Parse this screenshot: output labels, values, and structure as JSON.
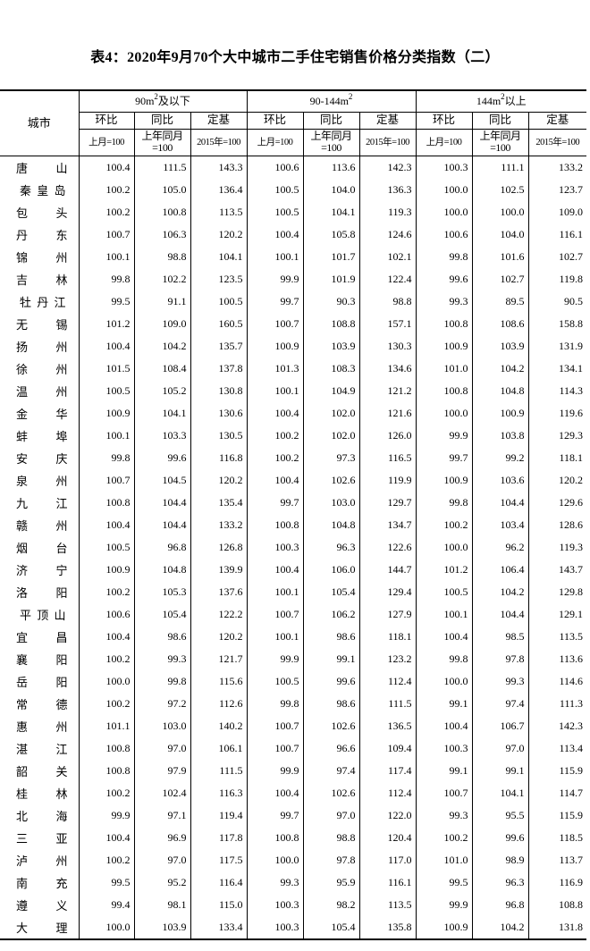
{
  "title": "表4：2020年9月70个大中城市二手住宅销售价格分类指数（二）",
  "header": {
    "city": "城市",
    "groups": [
      {
        "pre": "90m",
        "sup": "2",
        "post": "及以下"
      },
      {
        "pre": "90-144m",
        "sup": "2",
        "post": ""
      },
      {
        "pre": "144m",
        "sup": "2",
        "post": "以上"
      }
    ],
    "sub": [
      "环比",
      "同比",
      "定基"
    ],
    "base": [
      "上月=100",
      "上年同月=100",
      "2015年=100"
    ]
  },
  "rows": [
    [
      "唐山",
      100.4,
      111.5,
      143.3,
      100.6,
      113.6,
      142.3,
      100.3,
      111.1,
      133.2
    ],
    [
      "秦皇岛",
      100.2,
      105.0,
      136.4,
      100.5,
      104.0,
      136.3,
      100.0,
      102.5,
      123.7
    ],
    [
      "包头",
      100.2,
      100.8,
      113.5,
      100.5,
      104.1,
      119.3,
      100.0,
      100.0,
      109.0
    ],
    [
      "丹东",
      100.7,
      106.3,
      120.2,
      100.4,
      105.8,
      124.6,
      100.6,
      104.0,
      116.1
    ],
    [
      "锦州",
      100.1,
      98.8,
      104.1,
      100.1,
      101.7,
      102.1,
      99.8,
      101.6,
      102.7
    ],
    [
      "吉林",
      99.8,
      102.2,
      123.5,
      99.9,
      101.9,
      122.4,
      99.6,
      102.7,
      119.8
    ],
    [
      "牡丹江",
      99.5,
      91.1,
      100.5,
      99.7,
      90.3,
      98.8,
      99.3,
      89.5,
      90.5
    ],
    [
      "无锡",
      101.2,
      109.0,
      160.5,
      100.7,
      108.8,
      157.1,
      100.8,
      108.6,
      158.8
    ],
    [
      "扬州",
      100.4,
      104.2,
      135.7,
      100.9,
      103.9,
      130.3,
      100.9,
      103.9,
      131.9
    ],
    [
      "徐州",
      101.5,
      108.4,
      137.8,
      101.3,
      108.3,
      134.6,
      101.0,
      104.2,
      134.1
    ],
    [
      "温州",
      100.5,
      105.2,
      130.8,
      100.1,
      104.9,
      121.2,
      100.8,
      104.8,
      114.3
    ],
    [
      "金华",
      100.9,
      104.1,
      130.6,
      100.4,
      102.0,
      121.6,
      100.0,
      100.9,
      119.6
    ],
    [
      "蚌埠",
      100.1,
      103.3,
      130.5,
      100.2,
      102.0,
      126.0,
      99.9,
      103.8,
      129.3
    ],
    [
      "安庆",
      99.8,
      99.6,
      116.8,
      100.2,
      97.3,
      116.5,
      99.7,
      99.2,
      118.1
    ],
    [
      "泉州",
      100.7,
      104.5,
      120.2,
      100.4,
      102.6,
      119.9,
      100.9,
      103.6,
      120.2
    ],
    [
      "九江",
      100.8,
      104.4,
      135.4,
      99.7,
      103.0,
      129.7,
      99.8,
      104.4,
      129.6
    ],
    [
      "赣州",
      100.4,
      104.4,
      133.2,
      100.8,
      104.8,
      134.7,
      100.2,
      103.4,
      128.6
    ],
    [
      "烟台",
      100.5,
      96.8,
      126.8,
      100.3,
      96.3,
      122.6,
      100.0,
      96.2,
      119.3
    ],
    [
      "济宁",
      100.9,
      104.8,
      139.9,
      100.4,
      106.0,
      144.7,
      101.2,
      106.4,
      143.7
    ],
    [
      "洛阳",
      100.2,
      105.3,
      137.6,
      100.1,
      105.4,
      129.4,
      100.5,
      104.2,
      129.8
    ],
    [
      "平顶山",
      100.6,
      105.4,
      122.2,
      100.7,
      106.2,
      127.9,
      100.1,
      104.4,
      129.1
    ],
    [
      "宜昌",
      100.4,
      98.6,
      120.2,
      100.1,
      98.6,
      118.1,
      100.4,
      98.5,
      113.5
    ],
    [
      "襄阳",
      100.2,
      99.3,
      121.7,
      99.9,
      99.1,
      123.2,
      99.8,
      97.8,
      113.6
    ],
    [
      "岳阳",
      100.0,
      99.8,
      115.6,
      100.5,
      99.6,
      112.4,
      100.0,
      99.3,
      114.6
    ],
    [
      "常德",
      100.2,
      97.2,
      112.6,
      99.8,
      98.6,
      111.5,
      99.1,
      97.4,
      111.3
    ],
    [
      "惠州",
      101.1,
      103.0,
      140.2,
      100.7,
      102.6,
      136.5,
      100.4,
      106.7,
      142.3
    ],
    [
      "湛江",
      100.8,
      97.0,
      106.1,
      100.7,
      96.6,
      109.4,
      100.3,
      97.0,
      113.4
    ],
    [
      "韶关",
      100.8,
      97.9,
      111.5,
      99.9,
      97.4,
      117.4,
      99.1,
      99.1,
      115.9
    ],
    [
      "桂林",
      100.2,
      102.4,
      116.3,
      100.4,
      102.6,
      112.4,
      100.7,
      104.1,
      114.7
    ],
    [
      "北海",
      99.9,
      97.1,
      119.4,
      99.7,
      97.0,
      122.0,
      99.3,
      95.5,
      115.9
    ],
    [
      "三亚",
      100.4,
      96.9,
      117.8,
      100.8,
      98.8,
      120.4,
      100.2,
      99.6,
      118.5
    ],
    [
      "泸州",
      100.2,
      97.0,
      117.5,
      100.0,
      97.8,
      117.0,
      101.0,
      98.9,
      113.7
    ],
    [
      "南充",
      99.5,
      95.2,
      116.4,
      99.3,
      95.9,
      116.1,
      99.5,
      96.3,
      116.9
    ],
    [
      "遵义",
      99.4,
      98.1,
      115.0,
      100.3,
      98.2,
      113.5,
      99.9,
      96.8,
      108.8
    ],
    [
      "大理",
      100.0,
      103.9,
      133.4,
      100.3,
      105.4,
      135.8,
      100.9,
      104.2,
      131.8
    ]
  ]
}
